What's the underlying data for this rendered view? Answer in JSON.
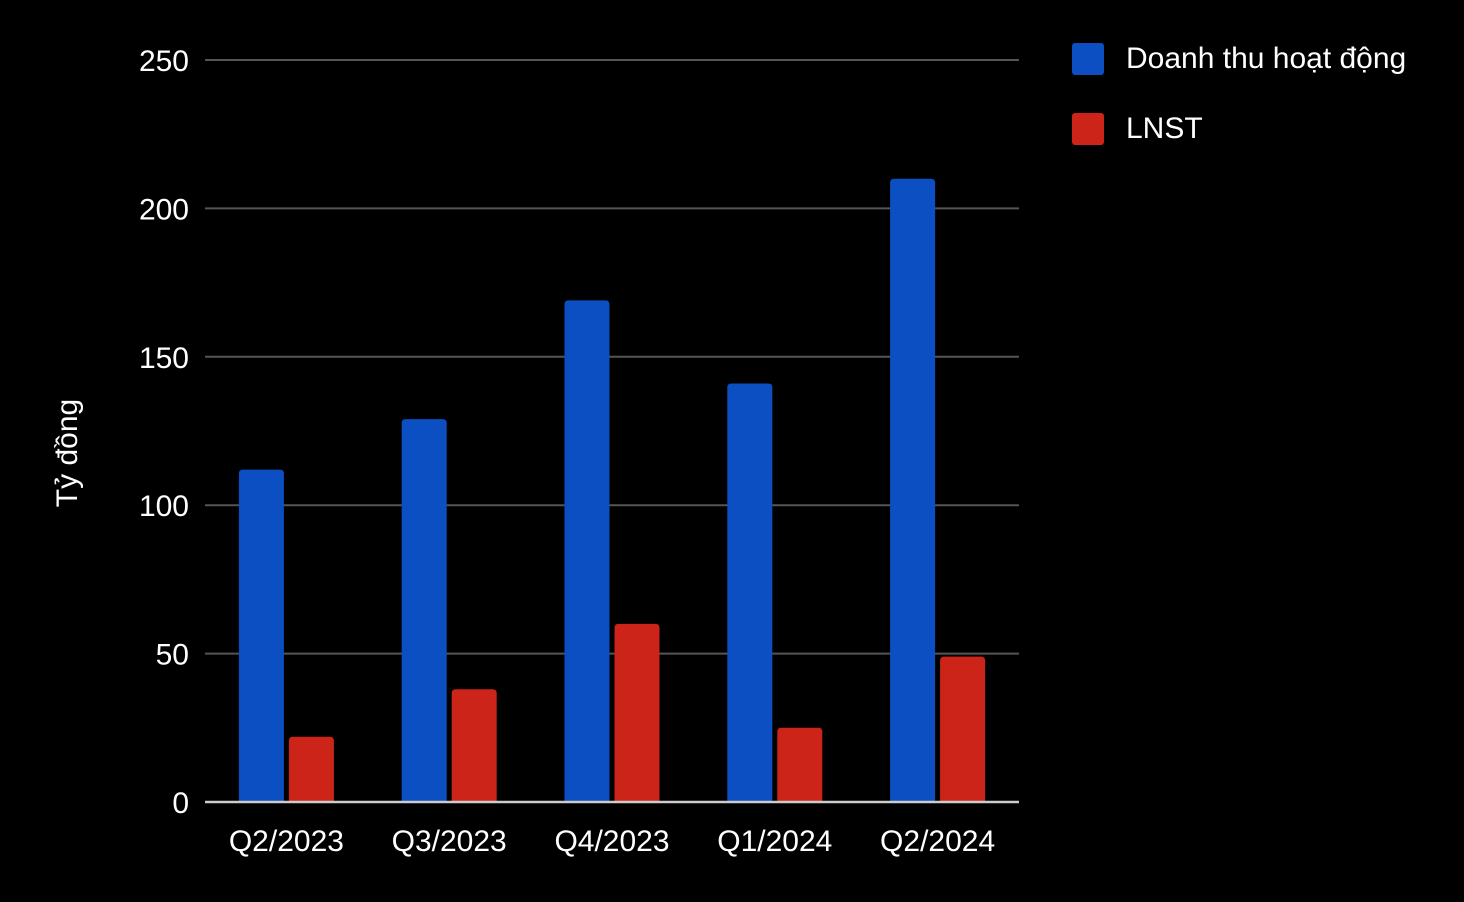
{
  "chart_data": {
    "type": "bar",
    "title": "",
    "xlabel": "",
    "ylabel": "Tỷ đồng",
    "categories": [
      "Q2/2023",
      "Q3/2023",
      "Q4/2023",
      "Q1/2024",
      "Q2/2024"
    ],
    "series": [
      {
        "name": "Doanh thu hoạt động",
        "color": "#0b4fc2",
        "values": [
          112,
          129,
          169,
          141,
          210
        ]
      },
      {
        "name": "LNST",
        "color": "#cc2418",
        "values": [
          22,
          38,
          60,
          25,
          49
        ]
      }
    ],
    "ylim": [
      0,
      250
    ],
    "yticks": [
      "0",
      "50",
      "100",
      "150",
      "200",
      "250"
    ],
    "grid": true,
    "legend_position": "right",
    "background": "#000000",
    "text_color": "#ffffff",
    "grid_color": "#555555"
  }
}
